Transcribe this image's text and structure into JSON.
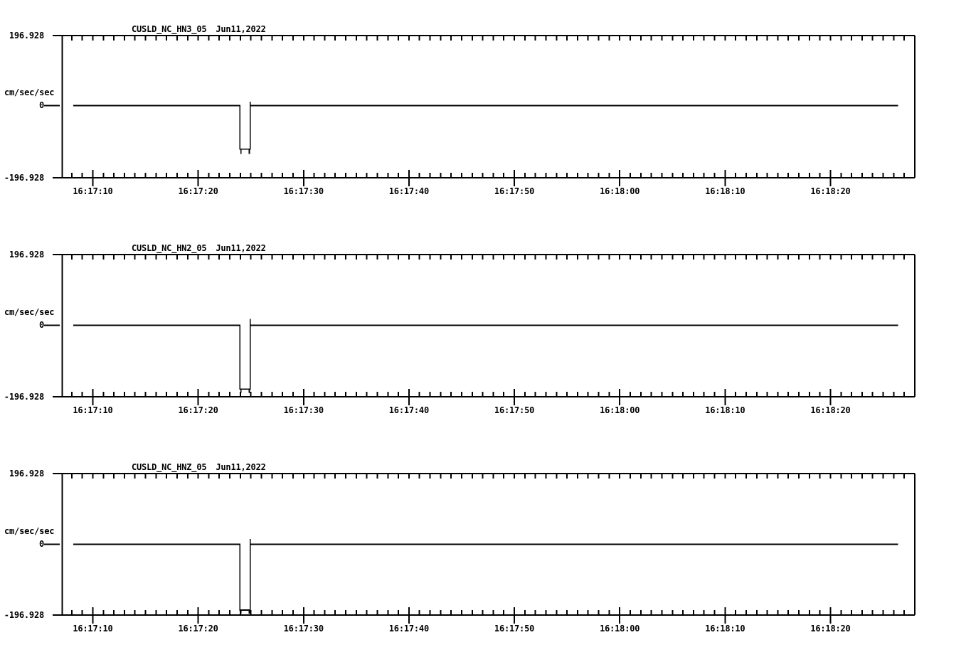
{
  "page": {
    "background": "#ffffff",
    "foreground": "#000000"
  },
  "chart_data": [
    {
      "type": "line",
      "station": "CUSLD_NC_HN3_05",
      "date": "Jun11,2022",
      "ylabel": "cm/sec/sec",
      "ylim": [
        -196.928,
        196.928
      ],
      "y_tick_labels": [
        "196.928",
        "0",
        "-196.928"
      ],
      "x_tick_labels": [
        "16:17:10",
        "16:17:20",
        "16:17:30",
        "16:17:40",
        "16:17:50",
        "16:18:00",
        "16:18:10",
        "16:18:20"
      ],
      "x_tick_times_s": [
        10,
        20,
        30,
        40,
        50,
        60,
        70,
        80
      ],
      "x_range_s": [
        7.1,
        88
      ],
      "x_minor_tick_interval_s": 1,
      "x_major_tick_interval_s": 10,
      "x_unit": "seconds after 16:17:00",
      "baseline_value": 0,
      "pulse": {
        "start_s": 23.95,
        "end_s": 24.95,
        "low_value": -119,
        "corner_spike_value": -132,
        "rebound_spike_value": 11
      },
      "points": [
        [
          8.15,
          0
        ],
        [
          23.95,
          0
        ],
        [
          23.95,
          -119
        ],
        [
          24.05,
          -119
        ],
        [
          24.05,
          -132
        ],
        [
          24.05,
          -119
        ],
        [
          24.85,
          -119
        ],
        [
          24.85,
          -132
        ],
        [
          24.85,
          -119
        ],
        [
          24.95,
          -119
        ],
        [
          24.95,
          11
        ],
        [
          24.95,
          0
        ],
        [
          86.4,
          0
        ]
      ]
    },
    {
      "type": "line",
      "station": "CUSLD_NC_HN2_05",
      "date": "Jun11,2022",
      "ylabel": "cm/sec/sec",
      "ylim": [
        -196.928,
        196.928
      ],
      "y_tick_labels": [
        "196.928",
        "0",
        "-196.928"
      ],
      "x_tick_labels": [
        "16:17:10",
        "16:17:20",
        "16:17:30",
        "16:17:40",
        "16:17:50",
        "16:18:00",
        "16:18:10",
        "16:18:20"
      ],
      "x_tick_times_s": [
        10,
        20,
        30,
        40,
        50,
        60,
        70,
        80
      ],
      "x_range_s": [
        7.1,
        88
      ],
      "x_minor_tick_interval_s": 1,
      "x_major_tick_interval_s": 10,
      "x_unit": "seconds after 16:17:00",
      "baseline_value": 0,
      "pulse": {
        "start_s": 23.95,
        "end_s": 24.95,
        "low_value": -176,
        "corner_spike_value": -186,
        "rebound_spike_value": 18
      },
      "points": [
        [
          8.15,
          0
        ],
        [
          23.95,
          0
        ],
        [
          23.95,
          -176
        ],
        [
          24.05,
          -176
        ],
        [
          24.05,
          -186
        ],
        [
          24.05,
          -176
        ],
        [
          24.85,
          -176
        ],
        [
          24.85,
          -186
        ],
        [
          24.85,
          -176
        ],
        [
          24.95,
          -176
        ],
        [
          24.95,
          18
        ],
        [
          24.95,
          0
        ],
        [
          86.4,
          0
        ]
      ]
    },
    {
      "type": "line",
      "station": "CUSLD_NC_HNZ_05",
      "date": "Jun11,2022",
      "ylabel": "cm/sec/sec",
      "ylim": [
        -196.928,
        196.928
      ],
      "y_tick_labels": [
        "196.928",
        "0",
        "-196.928"
      ],
      "x_tick_labels": [
        "16:17:10",
        "16:17:20",
        "16:17:30",
        "16:17:40",
        "16:17:50",
        "16:18:00",
        "16:18:10",
        "16:18:20"
      ],
      "x_tick_times_s": [
        10,
        20,
        30,
        40,
        50,
        60,
        70,
        80
      ],
      "x_range_s": [
        7.1,
        88
      ],
      "x_minor_tick_interval_s": 1,
      "x_major_tick_interval_s": 10,
      "x_unit": "seconds after 16:17:00",
      "baseline_value": 0,
      "pulse": {
        "start_s": 23.95,
        "end_s": 24.95,
        "low_value": -183,
        "corner_spike_value": -193,
        "rebound_spike_value": 15
      },
      "points": [
        [
          8.15,
          0
        ],
        [
          23.95,
          0
        ],
        [
          23.95,
          -183
        ],
        [
          24.05,
          -183
        ],
        [
          24.05,
          -193
        ],
        [
          24.05,
          -183
        ],
        [
          24.85,
          -183
        ],
        [
          24.85,
          -193
        ],
        [
          24.85,
          -183
        ],
        [
          24.95,
          -183
        ],
        [
          24.95,
          15
        ],
        [
          24.95,
          0
        ],
        [
          86.4,
          0
        ]
      ]
    }
  ]
}
